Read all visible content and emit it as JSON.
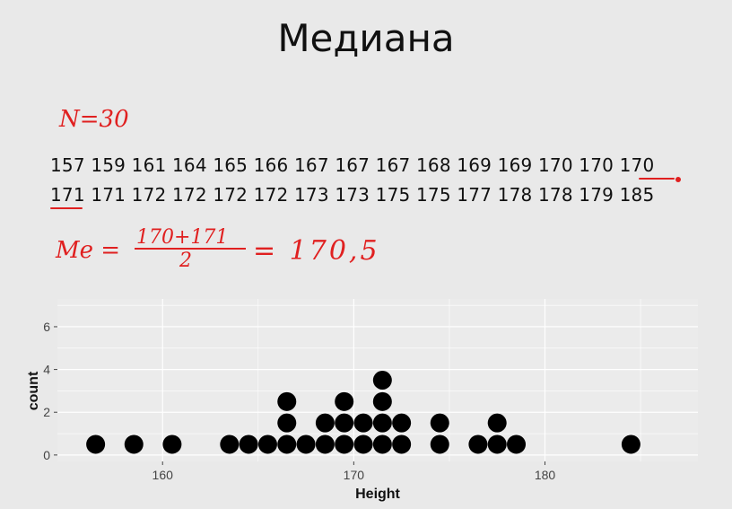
{
  "slide": {
    "title": "Медиана",
    "row1": "157 159 161 164 165 166 167 167 167 168 169 169 170 170 170",
    "row2": "171 171 172 172 172 172 173 173 175 175 177 178 178 179 185"
  },
  "annotations": {
    "n_label": "N=30",
    "median_label": "Me =",
    "numerator": "170+171",
    "denominator": "2",
    "result": "= 170,5"
  },
  "chart_data": {
    "type": "scatter",
    "title": "",
    "xlabel": "Height",
    "ylabel": "count",
    "xlim": [
      154.5,
      188
    ],
    "ylim": [
      -0.3,
      7.3
    ],
    "x_ticks": [
      160,
      170,
      180
    ],
    "y_ticks": [
      0,
      2,
      4,
      6
    ],
    "grid": true,
    "points": [
      {
        "x": 156.5,
        "y": 0.5
      },
      {
        "x": 158.5,
        "y": 0.5
      },
      {
        "x": 160.5,
        "y": 0.5
      },
      {
        "x": 163.5,
        "y": 0.5
      },
      {
        "x": 164.5,
        "y": 0.5
      },
      {
        "x": 165.5,
        "y": 0.5
      },
      {
        "x": 166.5,
        "y": 0.5
      },
      {
        "x": 166.5,
        "y": 1.5
      },
      {
        "x": 166.5,
        "y": 2.5
      },
      {
        "x": 167.5,
        "y": 0.5
      },
      {
        "x": 168.5,
        "y": 0.5
      },
      {
        "x": 168.5,
        "y": 1.5
      },
      {
        "x": 169.5,
        "y": 0.5
      },
      {
        "x": 169.5,
        "y": 1.5
      },
      {
        "x": 169.5,
        "y": 2.5
      },
      {
        "x": 170.5,
        "y": 0.5
      },
      {
        "x": 170.5,
        "y": 1.5
      },
      {
        "x": 171.5,
        "y": 0.5
      },
      {
        "x": 171.5,
        "y": 1.5
      },
      {
        "x": 171.5,
        "y": 2.5
      },
      {
        "x": 171.5,
        "y": 3.5
      },
      {
        "x": 172.5,
        "y": 0.5
      },
      {
        "x": 172.5,
        "y": 1.5
      },
      {
        "x": 174.5,
        "y": 0.5
      },
      {
        "x": 174.5,
        "y": 1.5
      },
      {
        "x": 176.5,
        "y": 0.5
      },
      {
        "x": 177.5,
        "y": 0.5
      },
      {
        "x": 177.5,
        "y": 1.5
      },
      {
        "x": 178.5,
        "y": 0.5
      },
      {
        "x": 184.5,
        "y": 0.5
      }
    ],
    "point_color": "#000000",
    "panel_color": "#ebebeb",
    "grid_color": "#ffffff"
  }
}
